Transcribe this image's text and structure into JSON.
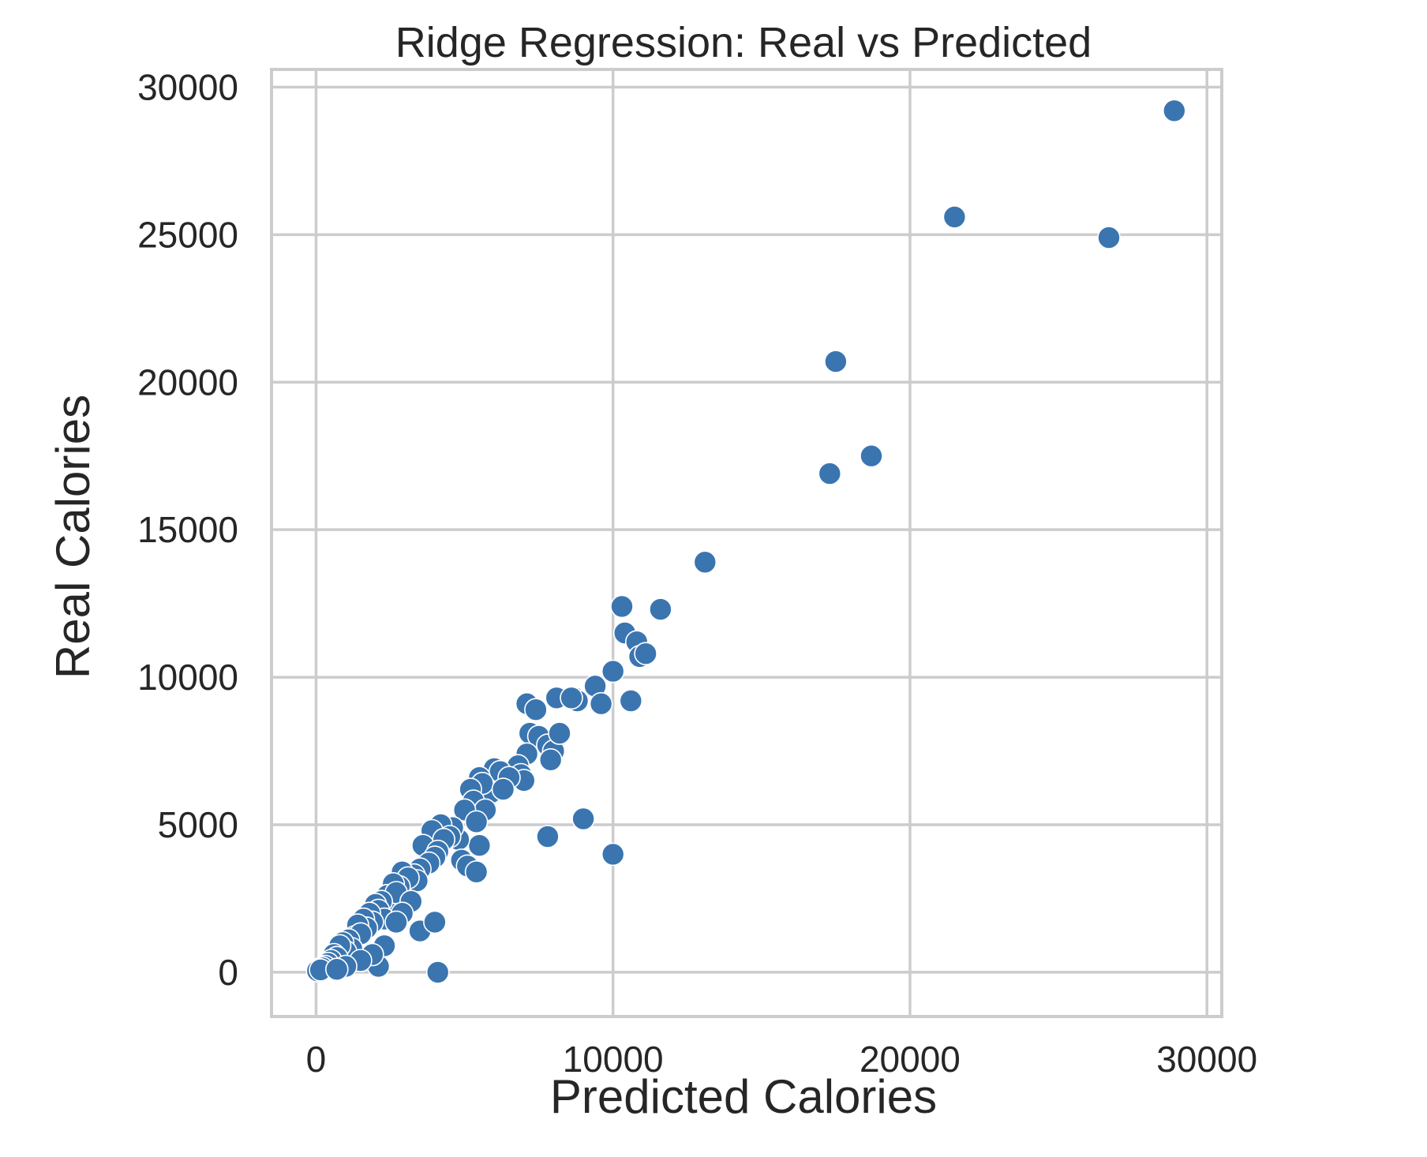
{
  "chart_data": {
    "type": "scatter",
    "title": "Ridge Regression: Real vs Predicted",
    "xlabel": "Predicted Calories",
    "ylabel": "Real Calories",
    "xlim": [
      -1500,
      30500
    ],
    "ylim": [
      -1500,
      30600
    ],
    "xticks": [
      0,
      10000,
      20000,
      30000
    ],
    "yticks": [
      0,
      5000,
      10000,
      15000,
      20000,
      25000,
      30000
    ],
    "grid": true,
    "color": "#3a75b0",
    "series": [
      {
        "x": [
          28900,
          21500,
          26700,
          17500,
          18700,
          17300,
          13100,
          10300,
          11600,
          10400,
          10800,
          10900,
          11100,
          10000,
          9400,
          9600,
          8700,
          8800,
          8100,
          8600,
          7100,
          7400,
          10600,
          7200,
          7500,
          7800,
          8000,
          8200,
          7100,
          7900,
          9000,
          10000,
          7800,
          6800,
          6900,
          7000,
          6000,
          6200,
          6500,
          5900,
          5500,
          5600,
          5200,
          5300,
          5700,
          6300,
          5000,
          5400,
          5500,
          4800,
          4600,
          4200,
          4500,
          3900,
          4300,
          3600,
          4100,
          4000,
          3800,
          3500,
          4900,
          5100,
          5400,
          3300,
          3400,
          2900,
          3100,
          2800,
          2600,
          2400,
          2500,
          2700,
          2200,
          2000,
          2100,
          2300,
          1800,
          1900,
          1600,
          1700,
          1400,
          1300,
          1500,
          1100,
          1200,
          900,
          1000,
          800,
          600,
          700,
          500,
          400,
          300,
          200,
          100,
          50,
          150,
          2100,
          4100,
          3500,
          3200,
          2900,
          2700,
          2300,
          1900,
          1500,
          1000,
          700,
          4000
        ],
        "y": [
          29200,
          25600,
          24900,
          20700,
          17500,
          16900,
          13900,
          12400,
          12300,
          11500,
          11200,
          10700,
          10800,
          10200,
          9700,
          9100,
          9300,
          9200,
          9300,
          9300,
          9100,
          8900,
          9200,
          8100,
          8000,
          7700,
          7500,
          8100,
          7400,
          7200,
          5200,
          4000,
          4600,
          7000,
          6700,
          6500,
          6900,
          6800,
          6600,
          6100,
          6600,
          6400,
          6200,
          5800,
          5500,
          6200,
          5500,
          5100,
          4300,
          4500,
          4900,
          5000,
          4600,
          4800,
          4500,
          4300,
          4100,
          3900,
          3700,
          3500,
          3800,
          3600,
          3400,
          3300,
          3100,
          3400,
          3200,
          2900,
          3000,
          2600,
          2300,
          2700,
          2400,
          2300,
          2100,
          1800,
          2000,
          1700,
          1800,
          1500,
          1600,
          1200,
          1300,
          1100,
          800,
          1000,
          700,
          900,
          600,
          500,
          400,
          300,
          200,
          150,
          100,
          50,
          80,
          200,
          0,
          1400,
          2400,
          2000,
          1700,
          900,
          600,
          400,
          200,
          100,
          1700
        ]
      }
    ]
  }
}
